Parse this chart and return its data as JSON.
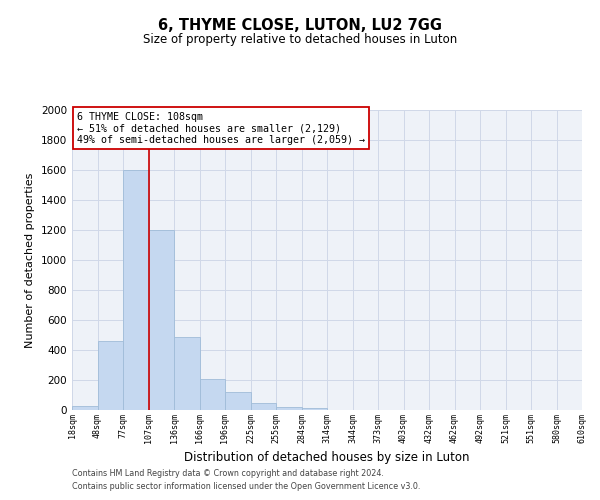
{
  "title": "6, THYME CLOSE, LUTON, LU2 7GG",
  "subtitle": "Size of property relative to detached houses in Luton",
  "xlabel": "Distribution of detached houses by size in Luton",
  "ylabel": "Number of detached properties",
  "bin_labels": [
    "18sqm",
    "48sqm",
    "77sqm",
    "107sqm",
    "136sqm",
    "166sqm",
    "196sqm",
    "225sqm",
    "255sqm",
    "284sqm",
    "314sqm",
    "344sqm",
    "373sqm",
    "403sqm",
    "432sqm",
    "462sqm",
    "492sqm",
    "521sqm",
    "551sqm",
    "580sqm",
    "610sqm"
  ],
  "bar_values": [
    30,
    460,
    1600,
    1200,
    490,
    210,
    120,
    45,
    20,
    15,
    0,
    0,
    0,
    0,
    0,
    0,
    0,
    0,
    0,
    0
  ],
  "bar_color": "#c5d8f0",
  "bar_edge_color": "#a0bcd8",
  "grid_color": "#d0d8e8",
  "property_line_color": "#cc0000",
  "annotation_box_edge_color": "#cc0000",
  "annotation_line1": "6 THYME CLOSE: 108sqm",
  "annotation_line2": "← 51% of detached houses are smaller (2,129)",
  "annotation_line3": "49% of semi-detached houses are larger (2,059) →",
  "ylim": [
    0,
    2000
  ],
  "yticks": [
    0,
    200,
    400,
    600,
    800,
    1000,
    1200,
    1400,
    1600,
    1800,
    2000
  ],
  "footer_line1": "Contains HM Land Registry data © Crown copyright and database right 2024.",
  "footer_line2": "Contains public sector information licensed under the Open Government Licence v3.0."
}
